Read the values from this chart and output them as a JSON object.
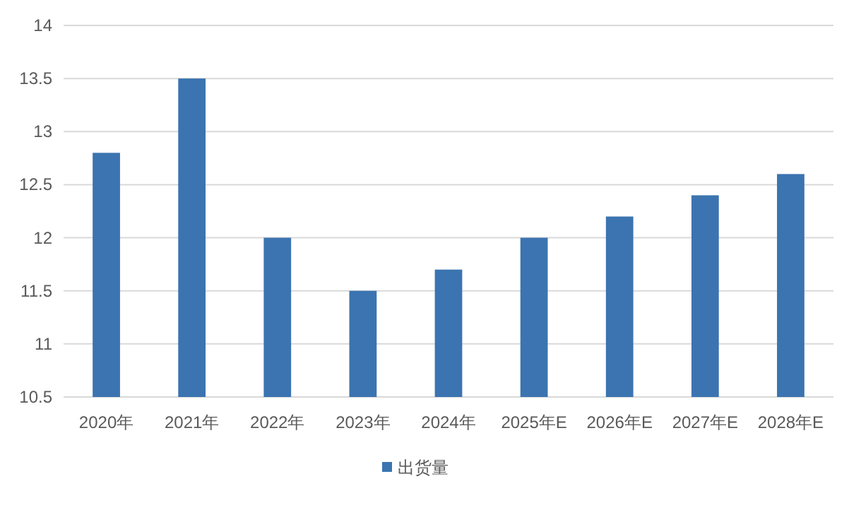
{
  "chart_data": {
    "type": "bar",
    "categories": [
      "2020年",
      "2021年",
      "2022年",
      "2023年",
      "2024年",
      "2025年E",
      "2026年E",
      "2027年E",
      "2028年E"
    ],
    "series": [
      {
        "name": "出货量",
        "color": "#3b74b0",
        "values": [
          12.8,
          13.5,
          12.0,
          11.5,
          11.7,
          12.0,
          12.2,
          12.4,
          12.6
        ]
      }
    ],
    "ylim": [
      10.5,
      14
    ],
    "yticks": [
      10.5,
      11,
      11.5,
      12,
      12.5,
      13,
      13.5,
      14
    ],
    "grid": "y",
    "legend": "bottom"
  }
}
